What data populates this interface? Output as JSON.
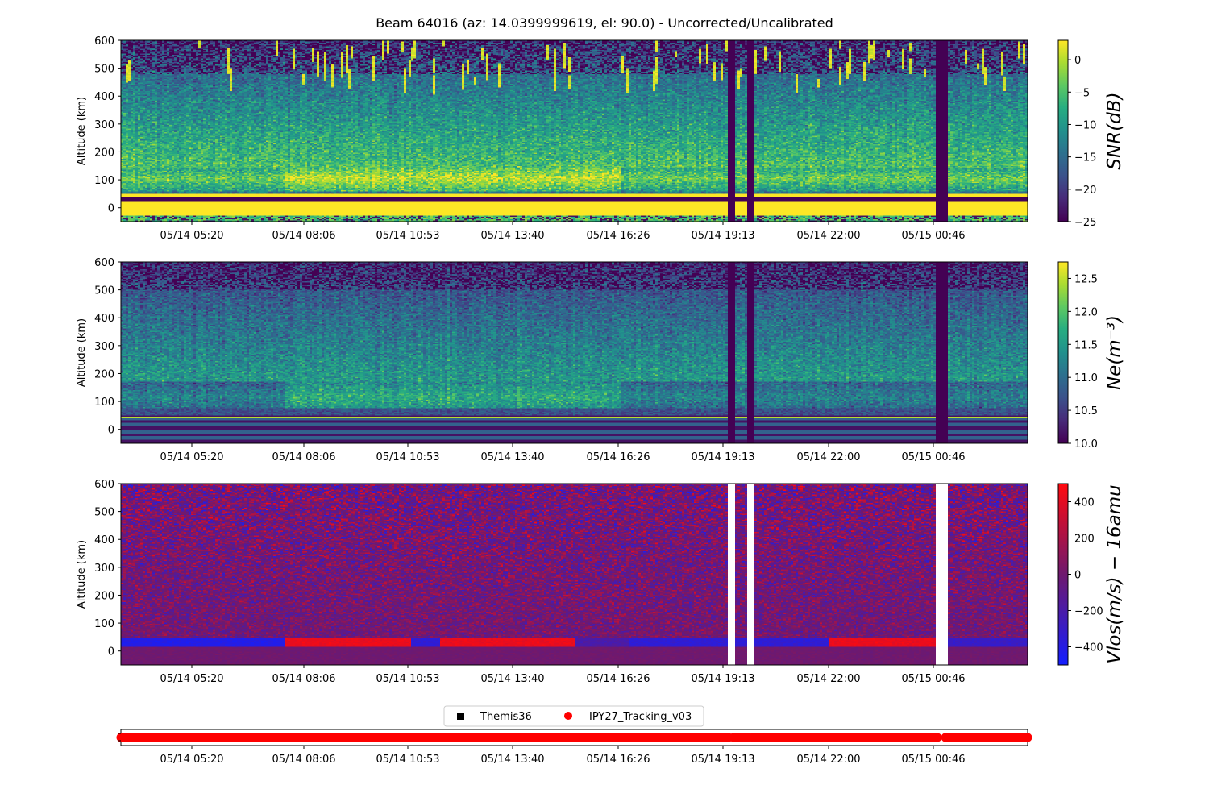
{
  "chart_data": {
    "title": "Beam 64016 (az: 14.0399999619, el: 90.0) - Uncorrected/Uncalibrated",
    "time_ticks": [
      "05/14 05:20",
      "05/14 08:06",
      "05/14 10:53",
      "05/14 13:40",
      "05/14 16:26",
      "05/14 19:13",
      "05/14 22:00",
      "05/15 00:46"
    ],
    "panels": [
      {
        "type": "heatmap",
        "quantity": "snr",
        "ylabel": "Altitude (km)",
        "ylim": [
          -50,
          600
        ],
        "yticks": [
          "600",
          "500",
          "400",
          "300",
          "200",
          "100",
          "0"
        ],
        "colormap": "viridis",
        "colorbar_label": "SNR(dB)",
        "colorbar_range": [
          -25,
          3
        ],
        "colorbar_ticks": [
          "0",
          "−5",
          "−10",
          "−15",
          "−20",
          "−25"
        ]
      },
      {
        "type": "heatmap",
        "quantity": "ne",
        "ylabel": "Altitude (km)",
        "ylim": [
          -50,
          600
        ],
        "yticks": [
          "600",
          "500",
          "400",
          "300",
          "200",
          "100",
          "0"
        ],
        "colormap": "viridis",
        "colorbar_label": "Ne(m⁻³)",
        "colorbar_range": [
          10.0,
          12.75
        ],
        "colorbar_ticks": [
          "12.5",
          "12.0",
          "11.5",
          "11.0",
          "10.5",
          "10.0"
        ]
      },
      {
        "type": "heatmap",
        "quantity": "vlos",
        "ylabel": "Altitude (km)",
        "ylim": [
          -50,
          600
        ],
        "yticks": [
          "600",
          "500",
          "400",
          "300",
          "200",
          "100",
          "0"
        ],
        "colormap": "blue-red",
        "colorbar_label": "Vlos(m/s) − 16amu",
        "colorbar_range": [
          -500,
          500
        ],
        "colorbar_ticks": [
          "400",
          "200",
          "0",
          "−200",
          "−400"
        ]
      }
    ],
    "legend": [
      {
        "name": "Themis36",
        "marker": "square",
        "color": "#000000"
      },
      {
        "name": "IPY27_Tracking_v03",
        "marker": "circle",
        "color": "#ff0000"
      }
    ],
    "data_gaps_fraction": [
      0.672,
      0.693,
      0.904
    ]
  }
}
